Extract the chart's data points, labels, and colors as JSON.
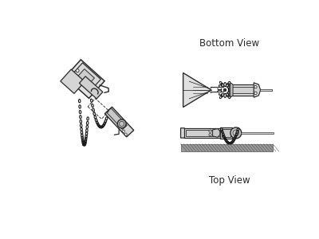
{
  "bg_color": "#ffffff",
  "line_color": "#2a2a2a",
  "chain_color": "#1a1a1a",
  "title_bottom_view": "Bottom View",
  "title_top_view": "Top View",
  "title_fontsize": 8.5,
  "fig_width": 4.0,
  "fig_height": 3.0,
  "dpi": 100
}
